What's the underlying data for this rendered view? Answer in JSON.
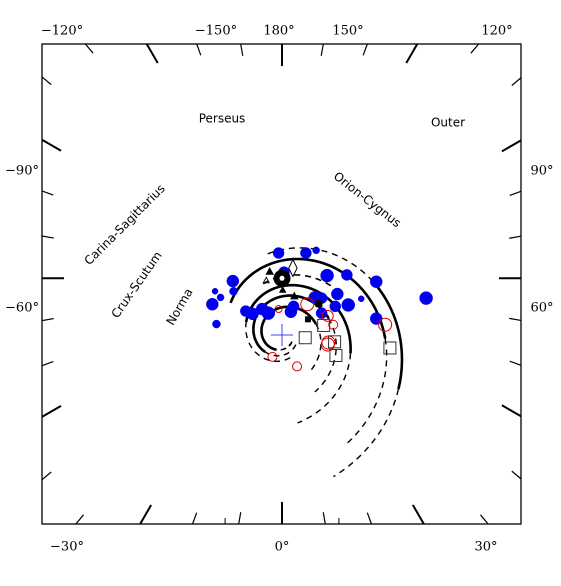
{
  "chart_data": {
    "type": "scatter",
    "title": "",
    "xlabel": "",
    "ylabel": "",
    "projection": "galactic plane face-on map (top view of the Milky Way)",
    "grid": false,
    "axes": {
      "bottom_ticks": [
        "−30°",
        "0°",
        "30°"
      ],
      "top_ticks": [
        "−120°",
        "−150°",
        "180°",
        "150°",
        "120°"
      ],
      "left_ticks": [
        "−90°",
        "−60°"
      ],
      "right_ticks": [
        "90°",
        "60°"
      ]
    },
    "arms": [
      {
        "name": "Perseus"
      },
      {
        "name": "Outer"
      },
      {
        "name": "Orion-Cygnus"
      },
      {
        "name": "Carina-Sagittarius"
      },
      {
        "name": "Crux-Scutum"
      },
      {
        "name": "Norma"
      }
    ],
    "sun": {
      "symbol": "circle-dot",
      "x": 0,
      "y": 8.3
    },
    "galactic_center": {
      "symbol": "plus",
      "x": 0,
      "y": 0
    },
    "series": [
      {
        "marker": "filled-circle",
        "color": "#0000ee",
        "points": [
          {
            "x": -0.5,
            "y": 12.0,
            "s": 5.5
          },
          {
            "x": 3.5,
            "y": 12.0,
            "s": 5.5
          },
          {
            "x": 5.0,
            "y": 12.4,
            "s": 3.5
          },
          {
            "x": 6.6,
            "y": 8.7,
            "s": 6.5
          },
          {
            "x": 9.5,
            "y": 8.8,
            "s": 5.5
          },
          {
            "x": 13.8,
            "y": 7.8,
            "s": 6.0
          },
          {
            "x": -7.2,
            "y": 7.9,
            "s": 6.0
          },
          {
            "x": 0.3,
            "y": 9.2,
            "s": 5.5
          },
          {
            "x": -9.8,
            "y": 6.4,
            "s": 3.0
          },
          {
            "x": -7.1,
            "y": 6.4,
            "s": 4.0
          },
          {
            "x": -9.0,
            "y": 5.5,
            "s": 3.5
          },
          {
            "x": 8.1,
            "y": 6.0,
            "s": 6.0
          },
          {
            "x": 4.8,
            "y": 5.5,
            "s": 6.0
          },
          {
            "x": 5.8,
            "y": 5.4,
            "s": 5.5
          },
          {
            "x": 11.6,
            "y": 5.3,
            "s": 3.0
          },
          {
            "x": 21.1,
            "y": 5.4,
            "s": 6.5
          },
          {
            "x": -10.2,
            "y": 4.5,
            "s": 6.0
          },
          {
            "x": 9.7,
            "y": 4.4,
            "s": 6.5
          },
          {
            "x": 7.8,
            "y": 4.2,
            "s": 5.5
          },
          {
            "x": 1.7,
            "y": 4.2,
            "s": 5.5
          },
          {
            "x": -2.9,
            "y": 3.8,
            "s": 6.0
          },
          {
            "x": -5.3,
            "y": 3.5,
            "s": 5.5
          },
          {
            "x": -2.0,
            "y": 3.2,
            "s": 6.5
          },
          {
            "x": 1.3,
            "y": 3.4,
            "s": 6.0
          },
          {
            "x": -4.3,
            "y": 3.1,
            "s": 6.0
          },
          {
            "x": 5.8,
            "y": 3.2,
            "s": 5.5
          },
          {
            "x": 13.8,
            "y": 2.4,
            "s": 6.0
          },
          {
            "x": -9.6,
            "y": 1.6,
            "s": 4.0
          }
        ]
      },
      {
        "marker": "open-circle",
        "color": "#dd0000",
        "points": [
          {
            "x": 3.7,
            "y": 4.5,
            "s": 6.5
          },
          {
            "x": 6.7,
            "y": 2.8,
            "s": 5.5
          },
          {
            "x": 15.1,
            "y": 1.5,
            "s": 6.5
          },
          {
            "x": 7.5,
            "y": 1.5,
            "s": 4.5
          },
          {
            "x": 6.8,
            "y": -1.1,
            "s": 6.5
          },
          {
            "x": 6.7,
            "y": -1.4,
            "s": 6.5
          },
          {
            "x": -1.4,
            "y": -3.2,
            "s": 4.5
          },
          {
            "x": 2.2,
            "y": -4.6,
            "s": 4.5
          },
          {
            "x": -0.5,
            "y": 3.8,
            "s": 3.5
          }
        ]
      },
      {
        "marker": "open-square",
        "color": "#333333",
        "points": [
          {
            "x": 6.1,
            "y": 1.4,
            "s": 6.0
          },
          {
            "x": 3.4,
            "y": -0.4,
            "s": 6.0
          },
          {
            "x": 7.7,
            "y": -1.0,
            "s": 6.0
          },
          {
            "x": 15.8,
            "y": -1.9,
            "s": 6.0
          },
          {
            "x": 7.9,
            "y": -3.0,
            "s": 6.0
          }
        ]
      },
      {
        "marker": "filled-square",
        "color": "#000000",
        "points": [
          {
            "x": 5.4,
            "y": 4.6,
            "s": 3.5
          },
          {
            "x": 3.8,
            "y": 2.3,
            "s": 3.0
          }
        ]
      },
      {
        "marker": "filled-triangle",
        "color": "#000000",
        "points": [
          {
            "x": -1.8,
            "y": 9.3,
            "s": 3.5
          },
          {
            "x": 1.8,
            "y": 5.7,
            "s": 3.5
          },
          {
            "x": 0.1,
            "y": 6.6,
            "s": 3.0
          }
        ]
      },
      {
        "marker": "open-triangle",
        "color": "#000000",
        "points": [
          {
            "x": -2.3,
            "y": 8.0,
            "s": 3.0
          },
          {
            "x": 0.0,
            "y": 7.8,
            "s": 4.0
          },
          {
            "x": 0.0,
            "y": 8.1,
            "s": 3.0
          }
        ]
      },
      {
        "marker": "open-diamond",
        "color": "#000000",
        "points": [
          {
            "x": 1.6,
            "y": 9.8,
            "s": 6.0
          }
        ]
      }
    ]
  }
}
